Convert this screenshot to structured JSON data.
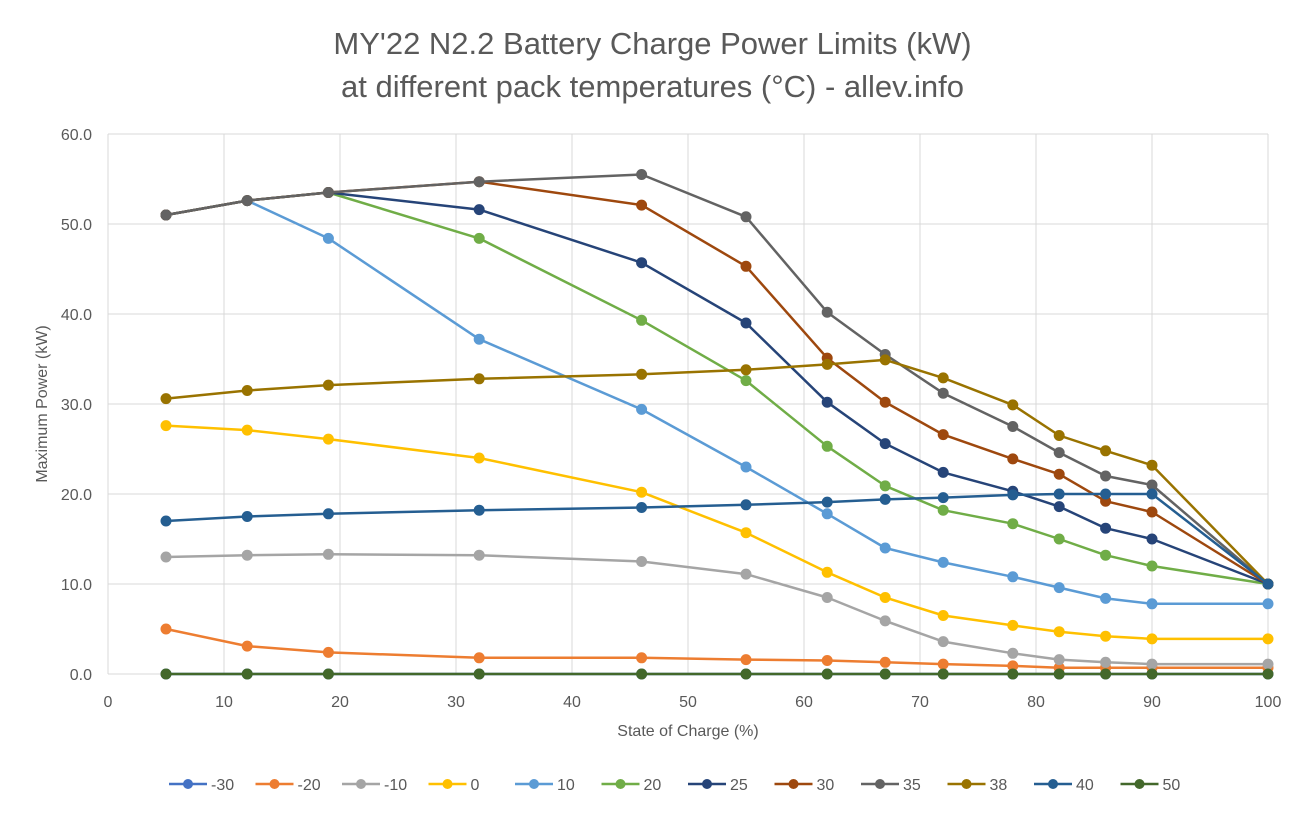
{
  "chart_data": {
    "type": "line",
    "title": "MY'22 N2.2 Battery Charge Power Limits (kW)",
    "subtitle": "at different pack temperatures (°C) - allev.info",
    "xlabel": "State of Charge (%)",
    "ylabel": "Maximum Power (kW)",
    "xlim": [
      0,
      100
    ],
    "ylim": [
      0,
      60
    ],
    "x_ticks": [
      "0",
      "10",
      "20",
      "30",
      "40",
      "50",
      "60",
      "70",
      "80",
      "90",
      "100"
    ],
    "y_ticks": [
      "0.0",
      "10.0",
      "20.0",
      "30.0",
      "40.0",
      "50.0",
      "60.0"
    ],
    "grid": true,
    "legend_position": "bottom",
    "x": [
      5,
      12,
      19,
      32,
      46,
      55,
      62,
      67,
      72,
      78,
      82,
      86,
      90,
      100
    ],
    "series": [
      {
        "name": "-30",
        "color": "#4472C4",
        "values": [
          0,
          0,
          0,
          0,
          0,
          0,
          0,
          0,
          0,
          0,
          0,
          0,
          0,
          0
        ]
      },
      {
        "name": "-20",
        "color": "#ED7D31",
        "values": [
          5.0,
          3.1,
          2.4,
          1.8,
          1.8,
          1.6,
          1.5,
          1.3,
          1.1,
          0.9,
          0.7,
          0.7,
          0.7,
          0.7
        ]
      },
      {
        "name": "-10",
        "color": "#A5A5A5",
        "values": [
          13.0,
          13.2,
          13.3,
          13.2,
          12.5,
          11.1,
          8.5,
          5.9,
          3.6,
          2.3,
          1.6,
          1.3,
          1.1,
          1.1
        ]
      },
      {
        "name": "0",
        "color": "#FFC000",
        "values": [
          27.6,
          27.1,
          26.1,
          24.0,
          20.2,
          15.7,
          11.3,
          8.5,
          6.5,
          5.4,
          4.7,
          4.2,
          3.9,
          3.9
        ]
      },
      {
        "name": "10",
        "color": "#5B9BD5",
        "values": [
          51.0,
          52.6,
          48.4,
          37.2,
          29.4,
          23.0,
          17.8,
          14.0,
          12.4,
          10.8,
          9.6,
          8.4,
          7.8,
          7.8
        ]
      },
      {
        "name": "20",
        "color": "#70AD47",
        "values": [
          51.0,
          52.6,
          53.5,
          48.4,
          39.3,
          32.6,
          25.3,
          20.9,
          18.2,
          16.7,
          15.0,
          13.2,
          12.0,
          10.0
        ]
      },
      {
        "name": "25",
        "color": "#264478",
        "values": [
          51.0,
          52.6,
          53.5,
          51.6,
          45.7,
          39.0,
          30.2,
          25.6,
          22.4,
          20.3,
          18.6,
          16.2,
          15.0,
          10.0
        ]
      },
      {
        "name": "30",
        "color": "#9E480E",
        "values": [
          51.0,
          52.6,
          53.5,
          54.7,
          52.1,
          45.3,
          35.1,
          30.2,
          26.6,
          23.9,
          22.2,
          19.2,
          18.0,
          10.0
        ]
      },
      {
        "name": "35",
        "color": "#636363",
        "values": [
          51.0,
          52.6,
          53.5,
          54.7,
          55.5,
          50.8,
          40.2,
          35.5,
          31.2,
          27.5,
          24.6,
          22.0,
          21.0,
          10.0
        ]
      },
      {
        "name": "38",
        "color": "#997300",
        "values": [
          30.6,
          31.5,
          32.1,
          32.8,
          33.3,
          33.8,
          34.4,
          34.9,
          32.9,
          29.9,
          26.5,
          24.8,
          23.2,
          10.0
        ]
      },
      {
        "name": "40",
        "color": "#255E91",
        "values": [
          17.0,
          17.5,
          17.8,
          18.2,
          18.5,
          18.8,
          19.1,
          19.4,
          19.6,
          19.9,
          20.0,
          20.0,
          20.0,
          10.0
        ]
      },
      {
        "name": "50",
        "color": "#43682B",
        "values": [
          0,
          0,
          0,
          0,
          0,
          0,
          0,
          0,
          0,
          0,
          0,
          0,
          0,
          0
        ]
      }
    ]
  }
}
